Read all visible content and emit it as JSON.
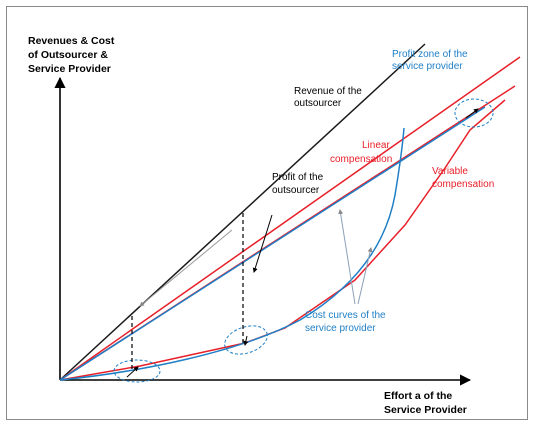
{
  "labels": {
    "y_axis": [
      "Revenues & Cost",
      "of Outsourcer &",
      "Service Provider"
    ],
    "x_axis": [
      "Effort a of the",
      "Service Provider"
    ],
    "revenue": [
      "Revenue of the",
      "outsourcer"
    ],
    "profit_zone": [
      "Profit zone of the",
      "service provider"
    ],
    "linear_comp": [
      "Linear",
      "compensation"
    ],
    "variable_comp": [
      "Variable",
      "compensation"
    ],
    "profit_outsourcer": [
      "Profit of the",
      "outsourcer"
    ],
    "cost_curves": [
      "Cost curves of the",
      "service provider"
    ]
  },
  "colors": {
    "axis": "#000000",
    "revenue": "#1a1a1a",
    "compensation": "#e8202a",
    "cost": "#1f7fc6",
    "text_black": "#000000",
    "text_red": "#e8202a",
    "text_blue": "#1f7fc6"
  }
}
